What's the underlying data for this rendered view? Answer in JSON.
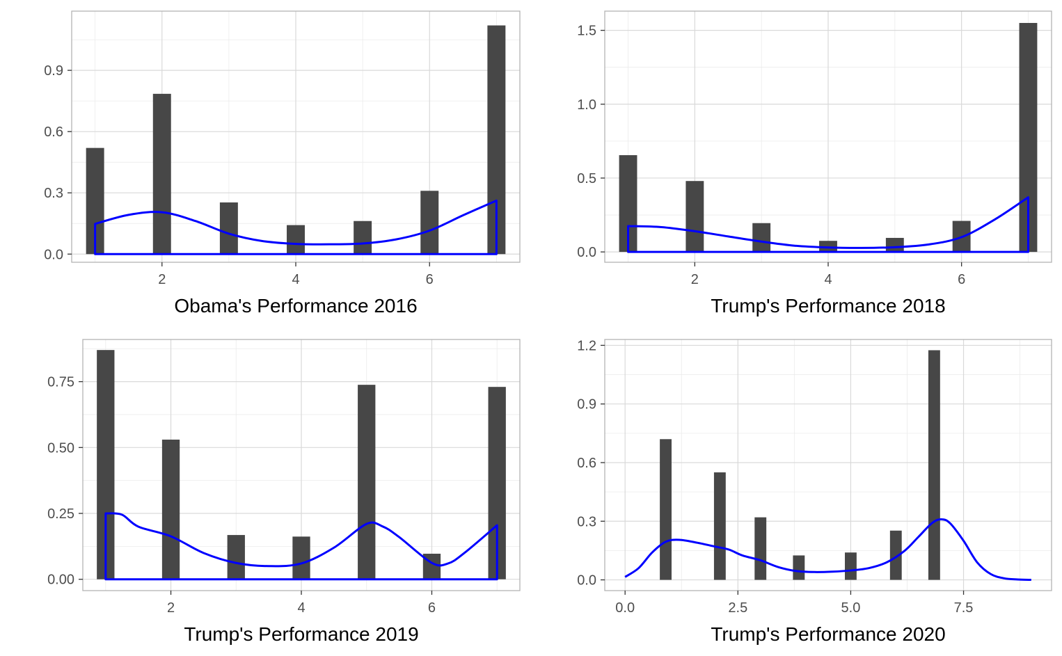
{
  "chart_data": [
    {
      "type": "bar",
      "xlabel": "Obama's Performance 2016",
      "ylabel": "",
      "xlim": [
        0.65,
        7.35
      ],
      "ylim": [
        -0.04,
        1.19
      ],
      "xticks": [
        2,
        4,
        6
      ],
      "xtick_labels": [
        "2",
        "4",
        "6"
      ],
      "yticks": [
        0,
        0.3,
        0.6,
        0.9
      ],
      "ytick_labels": [
        "0.0",
        "0.3",
        "0.6",
        "0.9"
      ],
      "grid": true,
      "bar_width": 0.27,
      "bars": [
        {
          "x": 1,
          "y": 0.52
        },
        {
          "x": 2,
          "y": 0.785
        },
        {
          "x": 3,
          "y": 0.253
        },
        {
          "x": 4,
          "y": 0.142
        },
        {
          "x": 5,
          "y": 0.162
        },
        {
          "x": 6,
          "y": 0.31
        },
        {
          "x": 7,
          "y": 1.12
        }
      ],
      "density": {
        "color": "#0000ff",
        "closed": true,
        "x": [
          1.0,
          1.5,
          2.0,
          2.5,
          3.0,
          3.5,
          4.0,
          4.5,
          5.0,
          5.5,
          6.0,
          6.5,
          7.0
        ],
        "y": [
          0.148,
          0.192,
          0.205,
          0.162,
          0.1,
          0.064,
          0.05,
          0.048,
          0.052,
          0.072,
          0.115,
          0.19,
          0.262
        ]
      }
    },
    {
      "type": "bar",
      "xlabel": "Trump's Performance 2018",
      "ylabel": "",
      "xlim": [
        0.65,
        7.35
      ],
      "ylim": [
        -0.07,
        1.63
      ],
      "xticks": [
        2,
        4,
        6
      ],
      "xtick_labels": [
        "2",
        "4",
        "6"
      ],
      "yticks": [
        0,
        0.5,
        1.0,
        1.5
      ],
      "ytick_labels": [
        "0.0",
        "0.5",
        "1.0",
        "1.5"
      ],
      "grid": true,
      "bar_width": 0.27,
      "bars": [
        {
          "x": 1,
          "y": 0.655
        },
        {
          "x": 2,
          "y": 0.48
        },
        {
          "x": 3,
          "y": 0.195
        },
        {
          "x": 4,
          "y": 0.075
        },
        {
          "x": 5,
          "y": 0.095
        },
        {
          "x": 6,
          "y": 0.21
        },
        {
          "x": 7,
          "y": 1.55
        }
      ],
      "density": {
        "color": "#0000ff",
        "closed": true,
        "x": [
          1.0,
          1.5,
          2.0,
          2.5,
          3.0,
          3.5,
          4.0,
          4.5,
          5.0,
          5.5,
          6.0,
          6.5,
          7.0
        ],
        "y": [
          0.175,
          0.168,
          0.14,
          0.105,
          0.07,
          0.042,
          0.03,
          0.027,
          0.032,
          0.05,
          0.1,
          0.22,
          0.37
        ]
      }
    },
    {
      "type": "bar",
      "xlabel": "Trump's Performance 2019",
      "ylabel": "",
      "xlim": [
        0.65,
        7.35
      ],
      "ylim": [
        -0.043,
        0.91
      ],
      "xticks": [
        2,
        4,
        6
      ],
      "xtick_labels": [
        "2",
        "4",
        "6"
      ],
      "yticks": [
        0,
        0.25,
        0.5,
        0.75
      ],
      "ytick_labels": [
        "0.00",
        "0.25",
        "0.50",
        "0.75"
      ],
      "grid": true,
      "bar_width": 0.27,
      "bars": [
        {
          "x": 1,
          "y": 0.87
        },
        {
          "x": 2,
          "y": 0.53
        },
        {
          "x": 3,
          "y": 0.168
        },
        {
          "x": 4,
          "y": 0.162
        },
        {
          "x": 5,
          "y": 0.738
        },
        {
          "x": 6,
          "y": 0.097
        },
        {
          "x": 7,
          "y": 0.73
        }
      ],
      "density": {
        "color": "#0000ff",
        "closed": true,
        "x": [
          1.0,
          1.25,
          1.5,
          2.0,
          2.5,
          3.0,
          3.5,
          4.0,
          4.5,
          5.0,
          5.25,
          5.5,
          6.0,
          6.25,
          6.5,
          7.0
        ],
        "y": [
          0.25,
          0.245,
          0.2,
          0.163,
          0.1,
          0.062,
          0.05,
          0.06,
          0.12,
          0.21,
          0.2,
          0.16,
          0.062,
          0.06,
          0.1,
          0.205
        ]
      }
    },
    {
      "type": "bar",
      "xlabel": "Trump's Performance 2020",
      "ylabel": "",
      "xlim": [
        -0.45,
        9.45
      ],
      "ylim": [
        -0.055,
        1.23
      ],
      "xticks": [
        0,
        2.5,
        5,
        7.5
      ],
      "xtick_labels": [
        "0.0",
        "2.5",
        "5.0",
        "7.5"
      ],
      "yticks": [
        0,
        0.3,
        0.6,
        0.9,
        1.2
      ],
      "ytick_labels": [
        "0.0",
        "0.3",
        "0.6",
        "0.9",
        "1.2"
      ],
      "grid": true,
      "bar_width": 0.26,
      "bars": [
        {
          "x": 0.9,
          "y": 0.72
        },
        {
          "x": 2.1,
          "y": 0.55
        },
        {
          "x": 3.0,
          "y": 0.32
        },
        {
          "x": 3.85,
          "y": 0.125
        },
        {
          "x": 5.0,
          "y": 0.14
        },
        {
          "x": 6.0,
          "y": 0.252
        },
        {
          "x": 6.85,
          "y": 1.175
        }
      ],
      "density": {
        "color": "#0000ff",
        "closed": false,
        "x": [
          0.0,
          0.3,
          0.6,
          0.9,
          1.2,
          1.6,
          2.0,
          2.3,
          2.6,
          3.0,
          3.4,
          3.8,
          4.2,
          4.6,
          5.0,
          5.4,
          5.8,
          6.2,
          6.5,
          6.8,
          7.0,
          7.2,
          7.5,
          7.8,
          8.1,
          8.4,
          8.7,
          9.0
        ],
        "y": [
          0.015,
          0.06,
          0.14,
          0.195,
          0.205,
          0.19,
          0.17,
          0.155,
          0.125,
          0.1,
          0.065,
          0.045,
          0.04,
          0.042,
          0.048,
          0.06,
          0.09,
          0.15,
          0.22,
          0.29,
          0.31,
          0.29,
          0.2,
          0.09,
          0.03,
          0.008,
          0.002,
          0.0
        ]
      }
    }
  ]
}
